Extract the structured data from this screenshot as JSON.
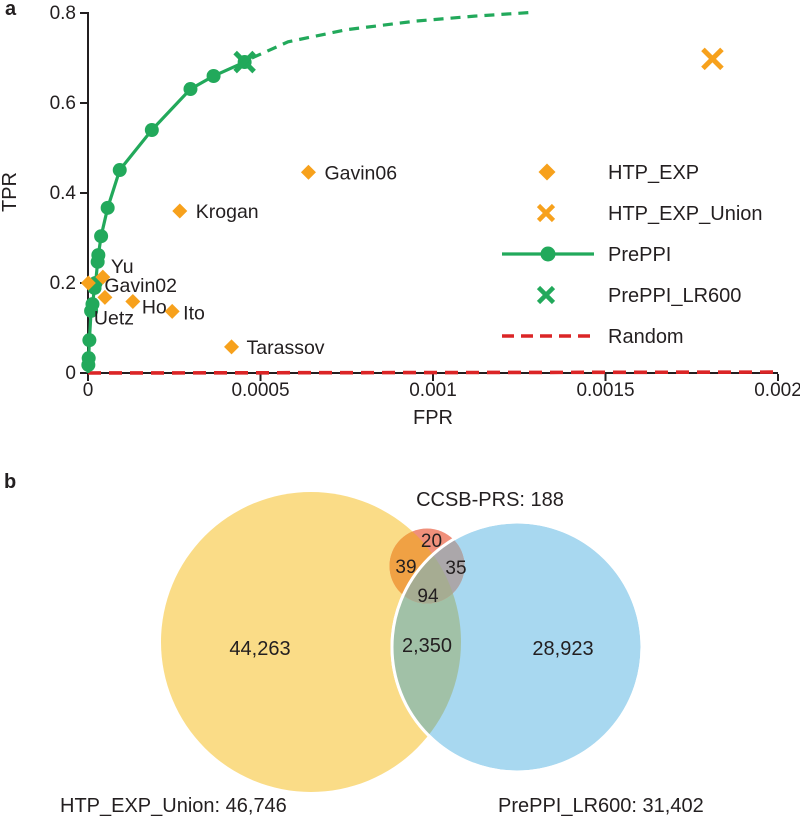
{
  "colors": {
    "green": "#22A95B",
    "orange": "#F7A11C",
    "red": "#DB2526",
    "axis": "#231F20",
    "text": "#231F20",
    "venn_yellow": "#FADC87",
    "venn_blue": "#A8D8F0",
    "venn_salmon": "#F0907B",
    "venn_orange_overlap": "#F0A144",
    "venn_gray_overlap": "#ABA7AA",
    "venn_olive_overlap": "#A6AC92",
    "venn_sage_overlap": "#A1C1A7"
  },
  "panel_a": {
    "label": "a"
  },
  "panel_b": {
    "label": "b",
    "ccsb_label": "CCSB-PRS: 188",
    "left_label": "HTP_EXP_Union: 46,746",
    "right_label": "PrePPI_LR600: 31,402",
    "regions": {
      "ccsb_only": "20",
      "ccsb_union": "39",
      "ccsb_preppi": "35",
      "ccsb_all": "94",
      "union_only": "44,263",
      "overlap": "2,350",
      "preppi_only": "28,923"
    }
  },
  "chart_data": [
    {
      "type": "line+scatter",
      "title": "",
      "xlabel": "FPR",
      "ylabel": "TPR",
      "xlim": [
        0,
        0.002
      ],
      "ylim": [
        0,
        0.8
      ],
      "grid": false,
      "legend_position": "center-right",
      "xticks": [
        {
          "value": 0,
          "label": "0"
        },
        {
          "value": 0.0005,
          "label": "0.0005"
        },
        {
          "value": 0.001,
          "label": "0.001"
        },
        {
          "value": 0.0015,
          "label": "0.0015"
        },
        {
          "value": 0.002,
          "label": "0.002"
        }
      ],
      "yticks": [
        {
          "value": 0,
          "label": "0"
        },
        {
          "value": 0.2,
          "label": "0.2"
        },
        {
          "value": 0.4,
          "label": "0.4"
        },
        {
          "value": 0.6,
          "label": "0.6"
        },
        {
          "value": 0.8,
          "label": "0.8"
        }
      ],
      "series": [
        {
          "name": "Random",
          "type": "dashline",
          "color": "red",
          "points": [
            [
              0,
              0
            ],
            [
              0.002,
              0.002
            ]
          ]
        },
        {
          "name": "PrePPI",
          "type": "line",
          "marker": "circle",
          "color": "green",
          "points": [
            [
              0,
              0
            ],
            [
              1e-06,
              0.018
            ],
            [
              2e-06,
              0.033
            ],
            [
              4e-06,
              0.073
            ],
            [
              9e-06,
              0.138
            ],
            [
              1.3e-05,
              0.153
            ],
            [
              1.9e-05,
              0.189
            ],
            [
              2.2e-05,
              0.2
            ],
            [
              2.8e-05,
              0.247
            ],
            [
              3e-05,
              0.262
            ],
            [
              3.8e-05,
              0.304
            ],
            [
              5.7e-05,
              0.367
            ],
            [
              9.2e-05,
              0.451
            ],
            [
              0.000185,
              0.54
            ],
            [
              0.000297,
              0.631
            ],
            [
              0.000364,
              0.66
            ],
            [
              0.000454,
              0.691
            ]
          ]
        },
        {
          "name": "PrePPI_extrapolated",
          "type": "dashline",
          "color": "green",
          "points": [
            [
              0.000475,
              0.7
            ],
            [
              0.00058,
              0.736
            ],
            [
              0.00075,
              0.763
            ],
            [
              0.00095,
              0.782
            ],
            [
              0.00112,
              0.793
            ],
            [
              0.00128,
              0.801
            ]
          ]
        },
        {
          "name": "HTP_EXP",
          "type": "diamonds",
          "color": "orange",
          "points": [
            {
              "label": "Yu",
              "fpr": 4.3e-05,
              "tpr": 0.213,
              "label_offset": [
                8,
                -4
              ]
            },
            {
              "label": "Gavin02",
              "fpr": 1e-06,
              "tpr": 0.2,
              "label_offset": [
                16,
                9
              ]
            },
            {
              "label": "Uetz",
              "fpr": 4.9e-05,
              "tpr": 0.168,
              "label_offset": [
                -11,
                27
              ]
            },
            {
              "label": "Ho",
              "fpr": 0.00013,
              "tpr": 0.159,
              "label_offset": [
                9,
                12
              ]
            },
            {
              "label": "Ito",
              "fpr": 0.000244,
              "tpr": 0.137,
              "label_offset": [
                11,
                8
              ]
            },
            {
              "label": "Krogan",
              "fpr": 0.000266,
              "tpr": 0.36,
              "label_offset": [
                16,
                7
              ]
            },
            {
              "label": "Gavin06",
              "fpr": 0.000639,
              "tpr": 0.446,
              "label_offset": [
                16,
                7
              ]
            },
            {
              "label": "Tarassov",
              "fpr": 0.000416,
              "tpr": 0.058,
              "label_offset": [
                15,
                7
              ]
            }
          ]
        },
        {
          "name": "HTP_EXP_Union",
          "type": "xmark",
          "color": "orange",
          "points": [
            [
              0.00181,
              0.698
            ]
          ]
        },
        {
          "name": "PrePPI_LR600",
          "type": "xmark",
          "color": "green",
          "points": [
            [
              0.000454,
              0.691
            ]
          ]
        }
      ],
      "legend": [
        {
          "label": "HTP_EXP",
          "marker": "diamond",
          "color": "orange"
        },
        {
          "label": "HTP_EXP_Union",
          "marker": "x",
          "color": "orange"
        },
        {
          "label": "PrePPI",
          "marker": "line-dot",
          "color": "green"
        },
        {
          "label": "PrePPI_LR600",
          "marker": "x",
          "color": "green"
        },
        {
          "label": "Random",
          "marker": "dash",
          "color": "red"
        }
      ]
    },
    {
      "type": "venn",
      "title": "",
      "sets": [
        {
          "name": "HTP_EXP_Union",
          "size": 46746
        },
        {
          "name": "PrePPI_LR600",
          "size": 31402
        },
        {
          "name": "CCSB-PRS",
          "size": 188
        }
      ],
      "regions": {
        "HTP_EXP_Union_only": 44263,
        "PrePPI_LR600_only": 28923,
        "HTP_EXP_Union_and_PrePPI_LR600_only": 2350,
        "CCSB_PRS_only": 20,
        "CCSB_PRS_and_HTP_EXP_Union_only": 39,
        "CCSB_PRS_and_PrePPI_LR600_only": 35,
        "all_three": 94
      }
    }
  ]
}
